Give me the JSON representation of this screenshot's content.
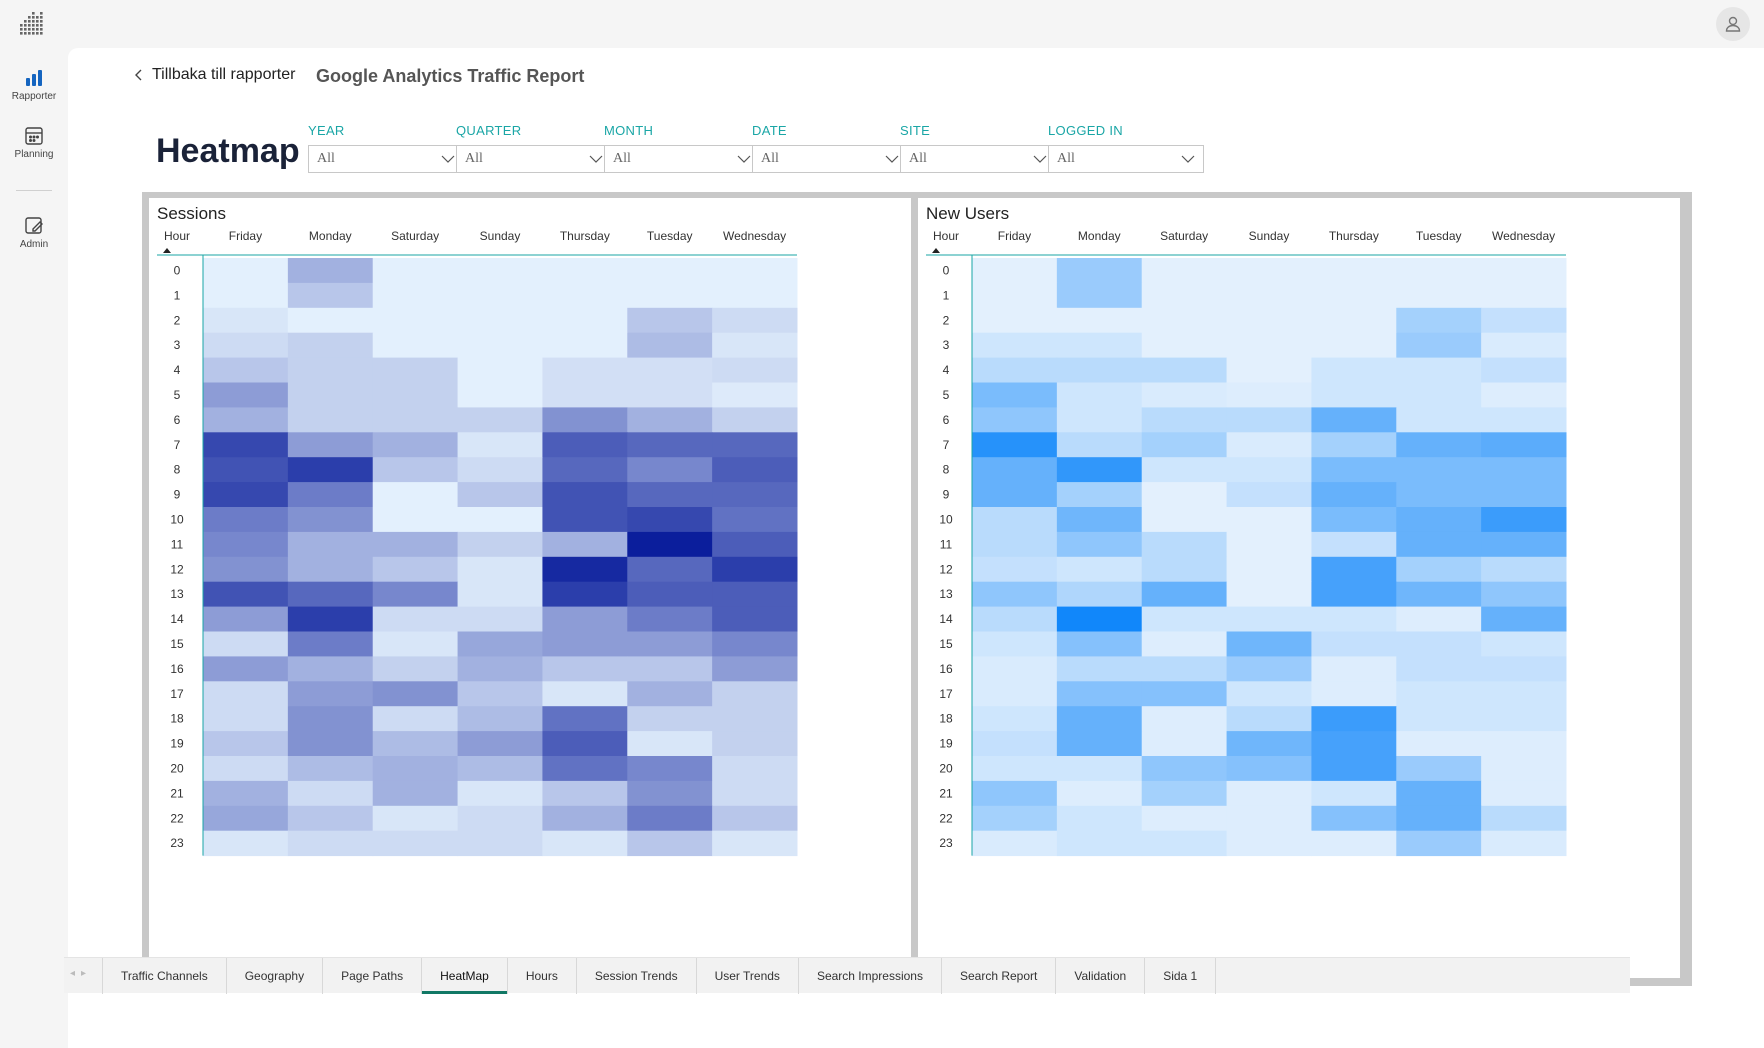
{
  "sidenav": {
    "items": [
      {
        "label": "Rapporter",
        "icon": "bar-chart-icon"
      },
      {
        "label": "Planning",
        "icon": "calendar-icon"
      },
      {
        "label": "Admin",
        "icon": "edit-icon"
      }
    ]
  },
  "header": {
    "back_label": "Tillbaka till rapporter",
    "report_title": "Google Analytics Traffic Report"
  },
  "page": {
    "heading": "Heatmap"
  },
  "filters": [
    {
      "label": "YEAR",
      "value": "All"
    },
    {
      "label": "QUARTER",
      "value": "All"
    },
    {
      "label": "MONTH",
      "value": "All"
    },
    {
      "label": "DATE",
      "value": "All"
    },
    {
      "label": "SITE",
      "value": "All"
    },
    {
      "label": "LOGGED IN",
      "value": "All"
    }
  ],
  "tabs": [
    {
      "label": "Traffic Channels"
    },
    {
      "label": "Geography"
    },
    {
      "label": "Page Paths"
    },
    {
      "label": "HeatMap",
      "active": true
    },
    {
      "label": "Hours"
    },
    {
      "label": "Session Trends"
    },
    {
      "label": "User Trends"
    },
    {
      "label": "Search Impressions"
    },
    {
      "label": "Search Report"
    },
    {
      "label": "Validation"
    },
    {
      "label": "Sida 1"
    }
  ],
  "colors": {
    "sessions_low": "#e3f0fd",
    "sessions_high": "#0b1e9c",
    "users_low": "#e3f0fd",
    "users_high": "#1187fa",
    "filter_label": "#1aa6a6",
    "active_tab": "#117865"
  },
  "chart_data": [
    {
      "type": "heatmap",
      "title": "Sessions",
      "row_header": "Hour",
      "categories": [
        "Friday",
        "Monday",
        "Saturday",
        "Sunday",
        "Thursday",
        "Tuesday",
        "Wednesday"
      ],
      "rows": [
        "0",
        "1",
        "2",
        "3",
        "4",
        "5",
        "6",
        "7",
        "8",
        "9",
        "10",
        "11",
        "12",
        "13",
        "14",
        "15",
        "16",
        "17",
        "18",
        "19",
        "20",
        "21",
        "22",
        "23"
      ],
      "scale": [
        0,
        10
      ],
      "values": [
        [
          0,
          3,
          0,
          0,
          0,
          0,
          0
        ],
        [
          0,
          2,
          0,
          0,
          0,
          0,
          0
        ],
        [
          0.5,
          0,
          0,
          0,
          0,
          2,
          1
        ],
        [
          1,
          1.5,
          0,
          0,
          0,
          2.5,
          0.5
        ],
        [
          2,
          1.5,
          1.5,
          0,
          0.8,
          0.8,
          1
        ],
        [
          4,
          1.5,
          1.5,
          0,
          0.8,
          0.8,
          0.3
        ],
        [
          3,
          1.5,
          1.5,
          1.5,
          4.5,
          3,
          1.5
        ],
        [
          8,
          4,
          3,
          0.5,
          7,
          6.5,
          6.5
        ],
        [
          7.5,
          8.5,
          2,
          1,
          6.5,
          5,
          7
        ],
        [
          8,
          5.5,
          0,
          2,
          7.5,
          6.5,
          6.5
        ],
        [
          5.5,
          4.5,
          0,
          0,
          7.5,
          8,
          6
        ],
        [
          5,
          3,
          3,
          1.5,
          3,
          10,
          7
        ],
        [
          4.5,
          3,
          2,
          0.5,
          9.5,
          6.5,
          8.5
        ],
        [
          7.5,
          6.5,
          5,
          0.5,
          8.5,
          7,
          7
        ],
        [
          4,
          8.5,
          1,
          1,
          4,
          5.5,
          7
        ],
        [
          1,
          5.5,
          0.5,
          3.5,
          4,
          4,
          5
        ],
        [
          4,
          3,
          1.5,
          3,
          2,
          2,
          4
        ],
        [
          1,
          4,
          4.5,
          2,
          0.5,
          3,
          1.5
        ],
        [
          1,
          4.5,
          1,
          2.5,
          6,
          1.5,
          1.5
        ],
        [
          2,
          4.5,
          2.5,
          4,
          7,
          0.5,
          1.5
        ],
        [
          1,
          2.5,
          3,
          2.5,
          6,
          5,
          1
        ],
        [
          3,
          1,
          3,
          0.5,
          2,
          4.5,
          1
        ],
        [
          3.5,
          2,
          0.5,
          1,
          3,
          5.5,
          2
        ],
        [
          0.5,
          1,
          1,
          1,
          0.5,
          2,
          0.5
        ]
      ]
    },
    {
      "type": "heatmap",
      "title": "New Users",
      "row_header": "Hour",
      "categories": [
        "Friday",
        "Monday",
        "Saturday",
        "Sunday",
        "Thursday",
        "Tuesday",
        "Wednesday"
      ],
      "rows": [
        "0",
        "1",
        "2",
        "3",
        "4",
        "5",
        "6",
        "7",
        "8",
        "9",
        "10",
        "11",
        "12",
        "13",
        "14",
        "15",
        "16",
        "17",
        "18",
        "19",
        "20",
        "21",
        "22",
        "23"
      ],
      "scale": [
        0,
        10
      ],
      "values": [
        [
          0,
          3.5,
          0,
          0,
          0,
          0,
          0
        ],
        [
          0,
          3.5,
          0,
          0,
          0,
          0,
          0
        ],
        [
          0,
          0,
          0,
          0,
          0,
          3,
          1.5
        ],
        [
          1,
          1,
          0,
          0,
          0,
          3.5,
          0.5
        ],
        [
          2,
          2,
          2,
          0,
          1,
          1,
          1.5
        ],
        [
          5,
          1,
          0.5,
          0.3,
          1,
          1,
          0.3
        ],
        [
          4,
          1,
          2,
          2,
          6,
          1,
          1
        ],
        [
          9,
          2,
          3,
          0.5,
          3,
          6,
          6.5
        ],
        [
          6,
          8.5,
          1,
          1,
          5,
          5,
          5
        ],
        [
          6,
          3,
          0,
          1.5,
          6,
          5,
          5
        ],
        [
          2,
          5.5,
          0,
          0,
          5,
          6,
          8
        ],
        [
          2,
          4,
          2,
          0,
          1.5,
          6,
          6
        ],
        [
          1.5,
          1,
          2,
          0,
          7.5,
          3,
          2
        ],
        [
          4,
          2.5,
          6,
          0,
          7.5,
          5.5,
          4
        ],
        [
          2,
          10,
          1,
          1,
          1,
          0.3,
          6
        ],
        [
          1,
          4.5,
          0.3,
          5.5,
          1.5,
          1.5,
          1
        ],
        [
          0.5,
          2,
          2,
          3.5,
          0.3,
          1.5,
          1.5
        ],
        [
          0.5,
          4.5,
          4.5,
          1,
          0.3,
          1,
          1
        ],
        [
          1,
          6,
          0.3,
          2,
          8,
          1,
          1
        ],
        [
          1.5,
          6,
          0.3,
          5.5,
          7.5,
          0.3,
          0.3
        ],
        [
          1,
          1,
          4,
          4.5,
          7.5,
          3.5,
          0.3
        ],
        [
          4,
          0.3,
          3,
          0.3,
          1,
          6,
          0.3
        ],
        [
          3,
          1,
          0.3,
          0.3,
          4.5,
          6,
          2
        ],
        [
          0.5,
          1,
          1,
          0.3,
          0.3,
          3.5,
          0.5
        ]
      ]
    }
  ]
}
